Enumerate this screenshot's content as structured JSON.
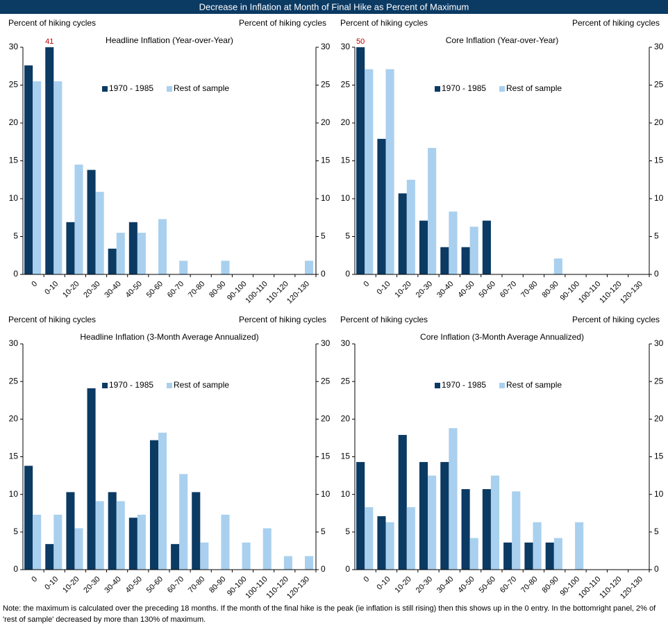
{
  "title": "Decrease in Inflation at Month of Final Hike as Percent of Maximum",
  "note": "Note: the maximum is calculated over the preceding 18 months. If the month of the final hike is the peak (ie inflation is still rising) then this shows up in the 0 entry. In the bottomright panel, 2% of 'rest of sample' decreased by more than 130% of maximum.",
  "chart_data": [
    {
      "type": "bar",
      "title": "Headline Inflation (Year-over-Year)",
      "ylabel": "Percent of hiking cycles",
      "y2label": "Percent of hiking cycles",
      "categories": [
        "0",
        "0-10",
        "10-20",
        "20-30",
        "30-40",
        "40-50",
        "50-60",
        "60-70",
        "70-80",
        "80-90",
        "90-100",
        "100-110",
        "110-120",
        "120-130"
      ],
      "series": [
        {
          "name": "1970 - 1985",
          "color": "#0b3a63",
          "values": [
            27.6,
            41,
            6.9,
            13.8,
            3.4,
            6.9,
            0,
            0,
            0,
            0,
            0,
            0,
            0,
            0
          ],
          "value_labels": [
            null,
            "41",
            null,
            null,
            null,
            null,
            null,
            null,
            null,
            null,
            null,
            null,
            null,
            null
          ]
        },
        {
          "name": "Rest of sample",
          "color": "#a9d0ee",
          "values": [
            25.5,
            25.5,
            14.5,
            10.9,
            5.5,
            5.5,
            7.3,
            1.8,
            0,
            1.8,
            0,
            0,
            0,
            1.8
          ]
        }
      ],
      "ylim": [
        0,
        30
      ],
      "yticks": [
        0,
        5,
        10,
        15,
        20,
        25,
        30
      ],
      "y2lim": [
        0,
        30
      ],
      "y2ticks": [
        0,
        5,
        10,
        15,
        20,
        25,
        30
      ],
      "legend": "top"
    },
    {
      "type": "bar",
      "title": "Core Inflation (Year-over-Year)",
      "ylabel": "Percent of hiking cycles",
      "y2label": "Percent of hiking cycles",
      "categories": [
        "0",
        "0-10",
        "10-20",
        "20-30",
        "30-40",
        "40-50",
        "50-60",
        "60-70",
        "70-80",
        "80-90",
        "90-100",
        "100-110",
        "110-120",
        "120-130"
      ],
      "series": [
        {
          "name": "1970 - 1985",
          "color": "#0b3a63",
          "values": [
            50,
            17.9,
            10.7,
            7.1,
            3.6,
            3.6,
            7.1,
            0,
            0,
            0,
            0,
            0,
            0,
            0
          ],
          "value_labels": [
            "50",
            null,
            null,
            null,
            null,
            null,
            null,
            null,
            null,
            null,
            null,
            null,
            null,
            null
          ]
        },
        {
          "name": "Rest of sample",
          "color": "#a9d0ee",
          "values": [
            27.1,
            27.1,
            12.5,
            16.7,
            8.3,
            6.3,
            0,
            0,
            0,
            2.1,
            0,
            0,
            0,
            0
          ]
        }
      ],
      "ylim": [
        0,
        30
      ],
      "yticks": [
        0,
        5,
        10,
        15,
        20,
        25,
        30
      ],
      "y2lim": [
        0,
        30
      ],
      "y2ticks": [
        0,
        5,
        10,
        15,
        20,
        25,
        30
      ],
      "legend": "top"
    },
    {
      "type": "bar",
      "title": "Headline Inflation (3-Month Average Annualized)",
      "ylabel": "Percent of hiking cycles",
      "y2label": "Percent of hiking cycles",
      "categories": [
        "0",
        "0-10",
        "10-20",
        "20-30",
        "30-40",
        "40-50",
        "50-60",
        "60-70",
        "70-80",
        "80-90",
        "90-100",
        "100-110",
        "110-120",
        "120-130"
      ],
      "series": [
        {
          "name": "1970 - 1985",
          "color": "#0b3a63",
          "values": [
            13.8,
            3.4,
            10.3,
            24.1,
            10.3,
            6.9,
            17.2,
            3.4,
            10.3,
            0,
            0,
            0,
            0,
            0
          ]
        },
        {
          "name": "Rest of sample",
          "color": "#a9d0ee",
          "values": [
            7.3,
            7.3,
            5.5,
            9.1,
            9.1,
            7.3,
            18.2,
            12.7,
            3.6,
            7.3,
            3.6,
            5.5,
            1.8,
            1.8
          ]
        }
      ],
      "ylim": [
        0,
        30
      ],
      "yticks": [
        0,
        5,
        10,
        15,
        20,
        25,
        30
      ],
      "y2lim": [
        0,
        30
      ],
      "y2ticks": [
        0,
        5,
        10,
        15,
        20,
        25,
        30
      ],
      "legend": "top"
    },
    {
      "type": "bar",
      "title": "Core Inflation (3-Month Average Annualized)",
      "ylabel": "Percent of hiking cycles",
      "y2label": "Percent of hiking cycles",
      "categories": [
        "0",
        "0-10",
        "10-20",
        "20-30",
        "30-40",
        "40-50",
        "50-60",
        "60-70",
        "70-80",
        "80-90",
        "90-100",
        "100-110",
        "110-120",
        "120-130"
      ],
      "series": [
        {
          "name": "1970 - 1985",
          "color": "#0b3a63",
          "values": [
            14.3,
            7.1,
            17.9,
            14.3,
            14.3,
            10.7,
            10.7,
            3.6,
            3.6,
            3.6,
            0,
            0,
            0,
            0
          ]
        },
        {
          "name": "Rest of sample",
          "color": "#a9d0ee",
          "values": [
            8.3,
            6.3,
            8.3,
            12.5,
            18.8,
            4.2,
            12.5,
            10.4,
            6.3,
            4.2,
            6.3,
            0,
            0,
            0
          ]
        }
      ],
      "ylim": [
        0,
        30
      ],
      "yticks": [
        0,
        5,
        10,
        15,
        20,
        25,
        30
      ],
      "y2lim": [
        0,
        30
      ],
      "y2ticks": [
        0,
        5,
        10,
        15,
        20,
        25,
        30
      ],
      "legend": "top"
    }
  ]
}
